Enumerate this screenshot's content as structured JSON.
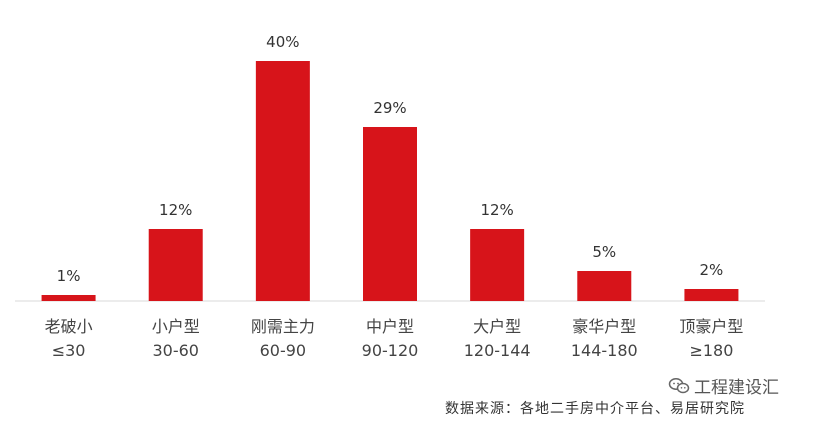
{
  "chart_data": {
    "type": "bar",
    "title": "",
    "xlabel": "",
    "ylabel": "",
    "categories": [
      [
        "老破小",
        "≤30"
      ],
      [
        "小户型",
        "30-60"
      ],
      [
        "刚需主力",
        "60-90"
      ],
      [
        "中户型",
        "90-120"
      ],
      [
        "大户型",
        "120-144"
      ],
      [
        "豪华户型",
        "144-180"
      ],
      [
        "顶豪户型",
        "≥180"
      ]
    ],
    "values": [
      1,
      12,
      40,
      29,
      12,
      5,
      2
    ],
    "value_labels": [
      "1%",
      "12%",
      "40%",
      "29%",
      "12%",
      "5%",
      "2%"
    ],
    "unit": "%",
    "ylim": [
      0,
      40
    ],
    "grid": false,
    "legend": "none",
    "colors": {
      "bar": "#d7141a",
      "axis": "#d9d9d9",
      "text": "#333333"
    }
  },
  "source_note": "数据来源：各地二手房中介平台、易居研究院",
  "watermark": {
    "icon": "chat-bubble-icon",
    "text": "工程建设汇"
  }
}
